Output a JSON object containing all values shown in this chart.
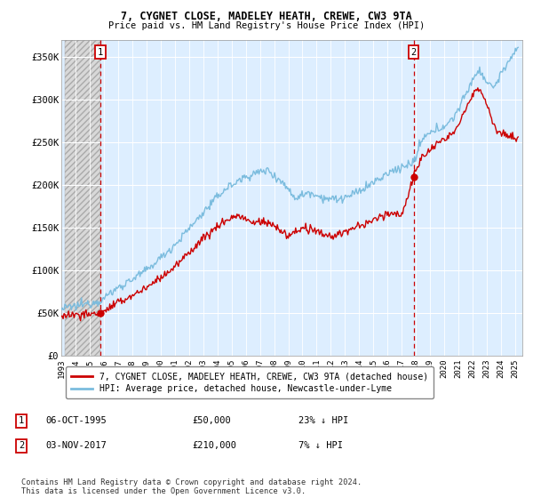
{
  "title1": "7, CYGNET CLOSE, MADELEY HEATH, CREWE, CW3 9TA",
  "title2": "Price paid vs. HM Land Registry's House Price Index (HPI)",
  "ylabel_ticks": [
    "£0",
    "£50K",
    "£100K",
    "£150K",
    "£200K",
    "£250K",
    "£300K",
    "£350K"
  ],
  "ytick_vals": [
    0,
    50000,
    100000,
    150000,
    200000,
    250000,
    300000,
    350000
  ],
  "ylim": [
    0,
    370000
  ],
  "xlim_start": 1993.25,
  "xlim_end": 2025.5,
  "hpi_color": "#7bbcde",
  "price_color": "#cc0000",
  "sale1_date": 1995.76,
  "sale1_price": 50000,
  "sale2_date": 2017.84,
  "sale2_price": 210000,
  "legend_line1": "7, CYGNET CLOSE, MADELEY HEATH, CREWE, CW3 9TA (detached house)",
  "legend_line2": "HPI: Average price, detached house, Newcastle-under-Lyme",
  "annotation1_date": "06-OCT-1995",
  "annotation1_price": "£50,000",
  "annotation1_hpi": "23% ↓ HPI",
  "annotation2_date": "03-NOV-2017",
  "annotation2_price": "£210,000",
  "annotation2_hpi": "7% ↓ HPI",
  "footer": "Contains HM Land Registry data © Crown copyright and database right 2024.\nThis data is licensed under the Open Government Licence v3.0.",
  "bg_color": "#ddeeff",
  "xtick_years": [
    1993,
    1994,
    1995,
    1996,
    1997,
    1998,
    1999,
    2000,
    2001,
    2002,
    2003,
    2004,
    2005,
    2006,
    2007,
    2008,
    2009,
    2010,
    2011,
    2012,
    2013,
    2014,
    2015,
    2016,
    2017,
    2018,
    2019,
    2020,
    2021,
    2022,
    2023,
    2024,
    2025
  ]
}
